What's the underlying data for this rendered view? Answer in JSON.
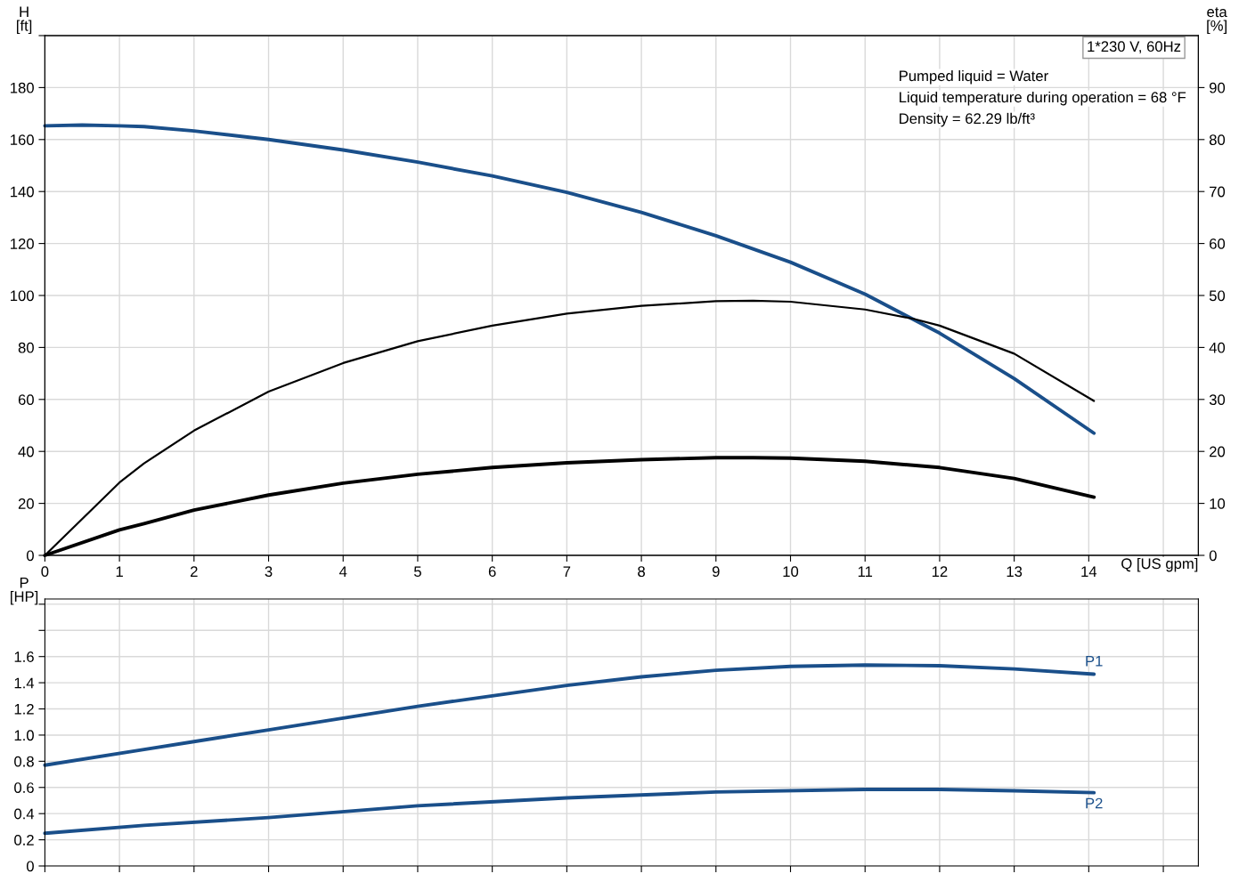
{
  "chart_data": [
    {
      "type": "line",
      "title": "1*230 V, 60Hz",
      "xlabel": "Q [US gpm]",
      "ylabel": "H\n[ft]",
      "y2label": "eta\n[%]",
      "xlim": [
        0,
        15.47
      ],
      "xticks": [
        0,
        1,
        2,
        3,
        4,
        5,
        6,
        7,
        8,
        9,
        10,
        11,
        12,
        13,
        14,
        {
          "value": 15,
          "label": null
        }
      ],
      "ylim": [
        0,
        200
      ],
      "yticks": [
        0,
        20,
        40,
        60,
        80,
        100,
        120,
        140,
        160,
        180,
        {
          "value": 200,
          "label": null
        }
      ],
      "y2lim": [
        0,
        100
      ],
      "y2ticks": [
        0,
        10,
        20,
        30,
        40,
        50,
        60,
        70,
        80,
        90
      ],
      "grid": true,
      "legend": false,
      "marker": "none",
      "line_style": "solid",
      "annotations": [
        "Pumped liquid = Water",
        "Liquid temperature during operation = 68 °F",
        "Density = 62.29 lb/ft³"
      ],
      "series": [
        {
          "color": "#1a4f8a",
          "x": [
            0,
            0.5,
            1,
            1.33,
            2,
            3,
            4,
            5,
            6,
            7,
            8,
            9,
            10,
            11,
            12,
            13,
            14.07
          ],
          "values": [
            165.3,
            165.6,
            165.3,
            165,
            163.3,
            160,
            156,
            151.3,
            146,
            139.7,
            132,
            123,
            112.8,
            100.5,
            85.5,
            68,
            47
          ]
        },
        {
          "color": "#000000",
          "axis": "y2",
          "x": [
            0,
            1,
            1.33,
            2,
            3,
            4,
            5,
            6,
            7,
            8,
            9,
            9.5,
            10,
            11,
            11.65,
            12,
            13,
            14.07
          ],
          "values": [
            0,
            14,
            17.7,
            24,
            31.5,
            37,
            41.2,
            44.2,
            46.5,
            48,
            48.9,
            49,
            48.8,
            47.3,
            45.5,
            44.2,
            38.8,
            29.7
          ]
        },
        {
          "color": "#000000",
          "axis": "y2",
          "x": [
            0,
            1,
            1.33,
            2,
            3,
            4,
            5,
            6,
            7,
            8,
            9,
            9.5,
            10,
            11,
            12,
            13,
            14.07
          ],
          "values": [
            0,
            4.9,
            6.1,
            8.7,
            11.6,
            13.9,
            15.6,
            16.9,
            17.8,
            18.4,
            18.8,
            18.8,
            18.7,
            18.1,
            16.9,
            14.8,
            11.2
          ]
        }
      ]
    },
    {
      "type": "line",
      "ylabel": "P\n[HP]",
      "tick_labels": "y",
      "xlim": [
        0,
        15.47
      ],
      "xticks": [
        {
          "value": 0,
          "label": null
        },
        {
          "value": 1,
          "label": null
        },
        {
          "value": 2,
          "label": null
        },
        {
          "value": 3,
          "label": null
        },
        {
          "value": 4,
          "label": null
        },
        {
          "value": 5,
          "label": null
        },
        {
          "value": 6,
          "label": null
        },
        {
          "value": 7,
          "label": null
        },
        {
          "value": 8,
          "label": null
        },
        {
          "value": 9,
          "label": null
        },
        {
          "value": 10,
          "label": null
        },
        {
          "value": 11,
          "label": null
        },
        {
          "value": 12,
          "label": null
        },
        {
          "value": 13,
          "label": null
        },
        {
          "value": 14,
          "label": null
        },
        {
          "value": 15,
          "label": null
        }
      ],
      "ylim": [
        0,
        2.04
      ],
      "yticks": [
        0,
        0.2,
        0.4,
        0.6,
        0.8,
        "1.0",
        1.2,
        1.4,
        1.6,
        {
          "value": 1.8,
          "label": null
        },
        {
          "value": 2.0,
          "label": null
        }
      ],
      "grid": true,
      "legend": false,
      "marker": "none",
      "line_style": "solid",
      "series": [
        {
          "name": "P1",
          "color": "#1a4f8a",
          "x": [
            0,
            1.33,
            2,
            3,
            4,
            5,
            6,
            7,
            8,
            9,
            10,
            11,
            12,
            13,
            14.07
          ],
          "values": [
            0.77,
            0.89,
            0.95,
            1.04,
            1.13,
            1.22,
            1.3,
            1.38,
            1.445,
            1.495,
            1.525,
            1.535,
            1.53,
            1.505,
            1.465
          ]
        },
        {
          "name": "P2",
          "color": "#1a4f8a",
          "x": [
            0,
            1.33,
            3,
            5,
            7,
            9,
            11,
            12,
            13,
            14.07
          ],
          "values": [
            0.25,
            0.31,
            0.37,
            0.46,
            0.52,
            0.565,
            0.585,
            0.585,
            0.575,
            0.56
          ]
        }
      ]
    }
  ]
}
